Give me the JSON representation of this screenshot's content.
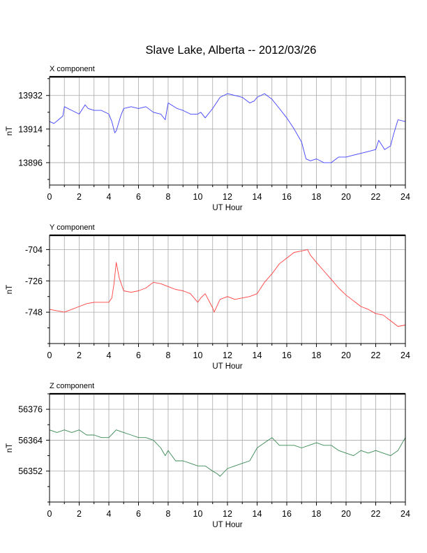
{
  "page": {
    "title": "Slave Lake, Alberta -- 2012/03/26"
  },
  "chart_data": [
    {
      "type": "line",
      "title": "X component",
      "xlabel": "UT Hour",
      "ylabel": "nT",
      "xlim": [
        0,
        24
      ],
      "ylim": [
        13884,
        13942
      ],
      "xticks": [
        0,
        2,
        4,
        6,
        8,
        10,
        12,
        14,
        16,
        18,
        20,
        22,
        24
      ],
      "yticks": [
        13896,
        13914,
        13932
      ],
      "grid": true,
      "series": [
        {
          "color": "#4040ff",
          "x": [
            0,
            0.3,
            0.6,
            0.9,
            1.0,
            1.5,
            2.0,
            2.4,
            2.6,
            3.0,
            3.5,
            4.0,
            4.2,
            4.4,
            4.5,
            4.8,
            5.0,
            5.5,
            6.0,
            6.5,
            7.0,
            7.5,
            7.8,
            8.0,
            8.4,
            8.6,
            9.0,
            9.5,
            10.0,
            10.2,
            10.5,
            11.0,
            11.5,
            12.0,
            12.5,
            13.0,
            13.5,
            13.8,
            14.0,
            14.5,
            15.0,
            15.5,
            16.0,
            16.5,
            17.0,
            17.3,
            17.6,
            18.0,
            18.5,
            19.0,
            19.5,
            20.0,
            20.5,
            21.0,
            21.5,
            22.0,
            22.2,
            22.6,
            23.0,
            23.2,
            23.5,
            24.0
          ],
          "y": [
            13918,
            13917,
            13919,
            13921,
            13926,
            13924,
            13922,
            13927,
            13925,
            13924,
            13924,
            13922,
            13918,
            13912,
            13913,
            13921,
            13925,
            13926,
            13925,
            13926,
            13923,
            13922,
            13919,
            13928,
            13926,
            13925,
            13924,
            13922,
            13922,
            13923,
            13920,
            13925,
            13931,
            13933,
            13932,
            13931,
            13928,
            13929,
            13931,
            13933,
            13930,
            13925,
            13920,
            13914,
            13907,
            13898,
            13897,
            13898,
            13896,
            13896,
            13899,
            13899,
            13900,
            13901,
            13902,
            13903,
            13908,
            13903,
            13905,
            13911,
            13919,
            13918
          ]
        }
      ]
    },
    {
      "type": "line",
      "title": "Y component",
      "xlabel": "UT Hour",
      "ylabel": "nT",
      "xlim": [
        0,
        24
      ],
      "ylim": [
        -770,
        -694
      ],
      "xticks": [
        0,
        2,
        4,
        6,
        8,
        10,
        12,
        14,
        16,
        18,
        20,
        22,
        24
      ],
      "yticks": [
        -748,
        -726,
        -704
      ],
      "grid": true,
      "series": [
        {
          "color": "#ff4040",
          "x": [
            0,
            0.5,
            1.0,
            1.5,
            2.0,
            2.5,
            3.0,
            3.5,
            4.0,
            4.2,
            4.35,
            4.5,
            4.7,
            5.0,
            5.5,
            6.0,
            6.5,
            7.0,
            7.5,
            8.0,
            8.5,
            9.0,
            9.5,
            10.0,
            10.2,
            10.5,
            11.0,
            11.1,
            11.5,
            12.0,
            12.5,
            13.0,
            13.5,
            14.0,
            14.5,
            15.0,
            15.5,
            16.0,
            16.5,
            17.0,
            17.4,
            17.6,
            18.0,
            18.5,
            19.0,
            19.5,
            20.0,
            20.5,
            21.0,
            21.5,
            22.0,
            22.5,
            23.0,
            23.5,
            24.0
          ],
          "y": [
            -746,
            -747,
            -748,
            -746,
            -744,
            -742,
            -741,
            -741,
            -741,
            -738,
            -728,
            -713,
            -724,
            -733,
            -734,
            -733,
            -731,
            -727,
            -728,
            -730,
            -732,
            -733,
            -735,
            -741,
            -738,
            -735,
            -745,
            -748,
            -739,
            -737,
            -739,
            -738,
            -737,
            -735,
            -727,
            -721,
            -714,
            -710,
            -706,
            -705,
            -704,
            -708,
            -713,
            -719,
            -725,
            -731,
            -736,
            -740,
            -744,
            -746,
            -749,
            -750,
            -754,
            -758,
            -757
          ]
        }
      ]
    },
    {
      "type": "line",
      "title": "Z component",
      "xlabel": "UT Hour",
      "ylabel": "nT",
      "xlim": [
        0,
        24
      ],
      "ylim": [
        56340,
        56382
      ],
      "xticks": [
        0,
        2,
        4,
        6,
        8,
        10,
        12,
        14,
        16,
        18,
        20,
        22,
        24
      ],
      "yticks": [
        56352,
        56364,
        56376
      ],
      "grid": true,
      "series": [
        {
          "color": "#3a8a55",
          "x": [
            0,
            0.5,
            1.0,
            1.5,
            2.0,
            2.5,
            3.0,
            3.5,
            4.0,
            4.5,
            5.0,
            5.5,
            6.0,
            6.5,
            7.0,
            7.5,
            7.8,
            8.0,
            8.5,
            9.0,
            9.5,
            10.0,
            10.5,
            11.0,
            11.3,
            11.5,
            12.0,
            12.5,
            13.0,
            13.5,
            14.0,
            14.5,
            15.0,
            15.5,
            16.0,
            16.5,
            17.0,
            17.5,
            18.0,
            18.5,
            19.0,
            19.5,
            20.0,
            20.5,
            21.0,
            21.5,
            22.0,
            22.5,
            23.0,
            23.5,
            24.0
          ],
          "y": [
            56368,
            56367,
            56368,
            56367,
            56368,
            56366,
            56366,
            56365,
            56365,
            56368,
            56367,
            56366,
            56365,
            56365,
            56364,
            56361,
            56358,
            56360,
            56356,
            56356,
            56355,
            56354,
            56354,
            56352,
            56351,
            56350,
            56353,
            56354,
            56355,
            56356,
            56361,
            56363,
            56365,
            56362,
            56362,
            56362,
            56361,
            56362,
            56363,
            56362,
            56362,
            56360,
            56359,
            56358,
            56360,
            56359,
            56360,
            56359,
            56358,
            56360,
            56365
          ]
        }
      ]
    }
  ]
}
